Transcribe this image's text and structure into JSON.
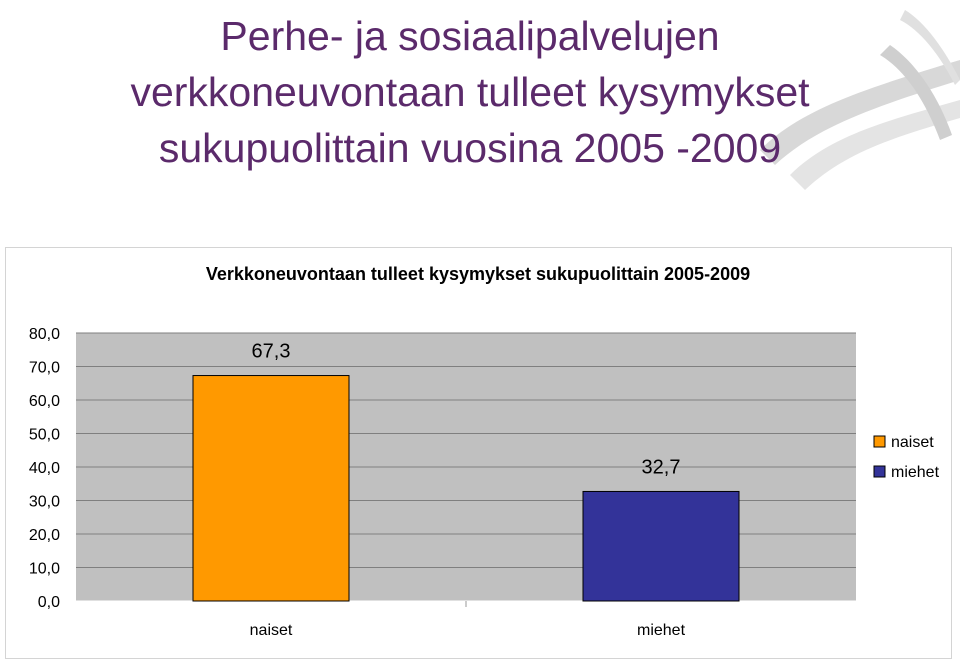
{
  "slide": {
    "title_lines": [
      "Perhe- ja sosiaalipalvelujen",
      "verkkoneuvontaan tulleet kysymykset",
      "sukupuolittain vuosina 2005 -2009"
    ]
  },
  "colors": {
    "title": "#5b2a6b",
    "plot_bg": "#c0c0c0",
    "grid": "#7f7f7f",
    "naiset": "#ff9900",
    "miehet": "#333399"
  },
  "chart_data": {
    "type": "bar",
    "title": "Verkkoneuvontaan tulleet kysymykset sukupuolittain 2005-2009",
    "categories": [
      "naiset",
      "miehet"
    ],
    "values": [
      67.3,
      32.7
    ],
    "value_labels": [
      "67,3",
      "32,7"
    ],
    "ylim": [
      0,
      80
    ],
    "y_ticks": [
      0,
      10,
      20,
      30,
      40,
      50,
      60,
      70,
      80
    ],
    "y_tick_labels": [
      "0,0",
      "10,0",
      "20,0",
      "30,0",
      "40,0",
      "50,0",
      "60,0",
      "70,0",
      "80,0"
    ],
    "grid": true,
    "legend_position": "right",
    "legend": [
      {
        "label": "naiset",
        "color": "#ff9900"
      },
      {
        "label": "miehet",
        "color": "#333399"
      }
    ]
  }
}
